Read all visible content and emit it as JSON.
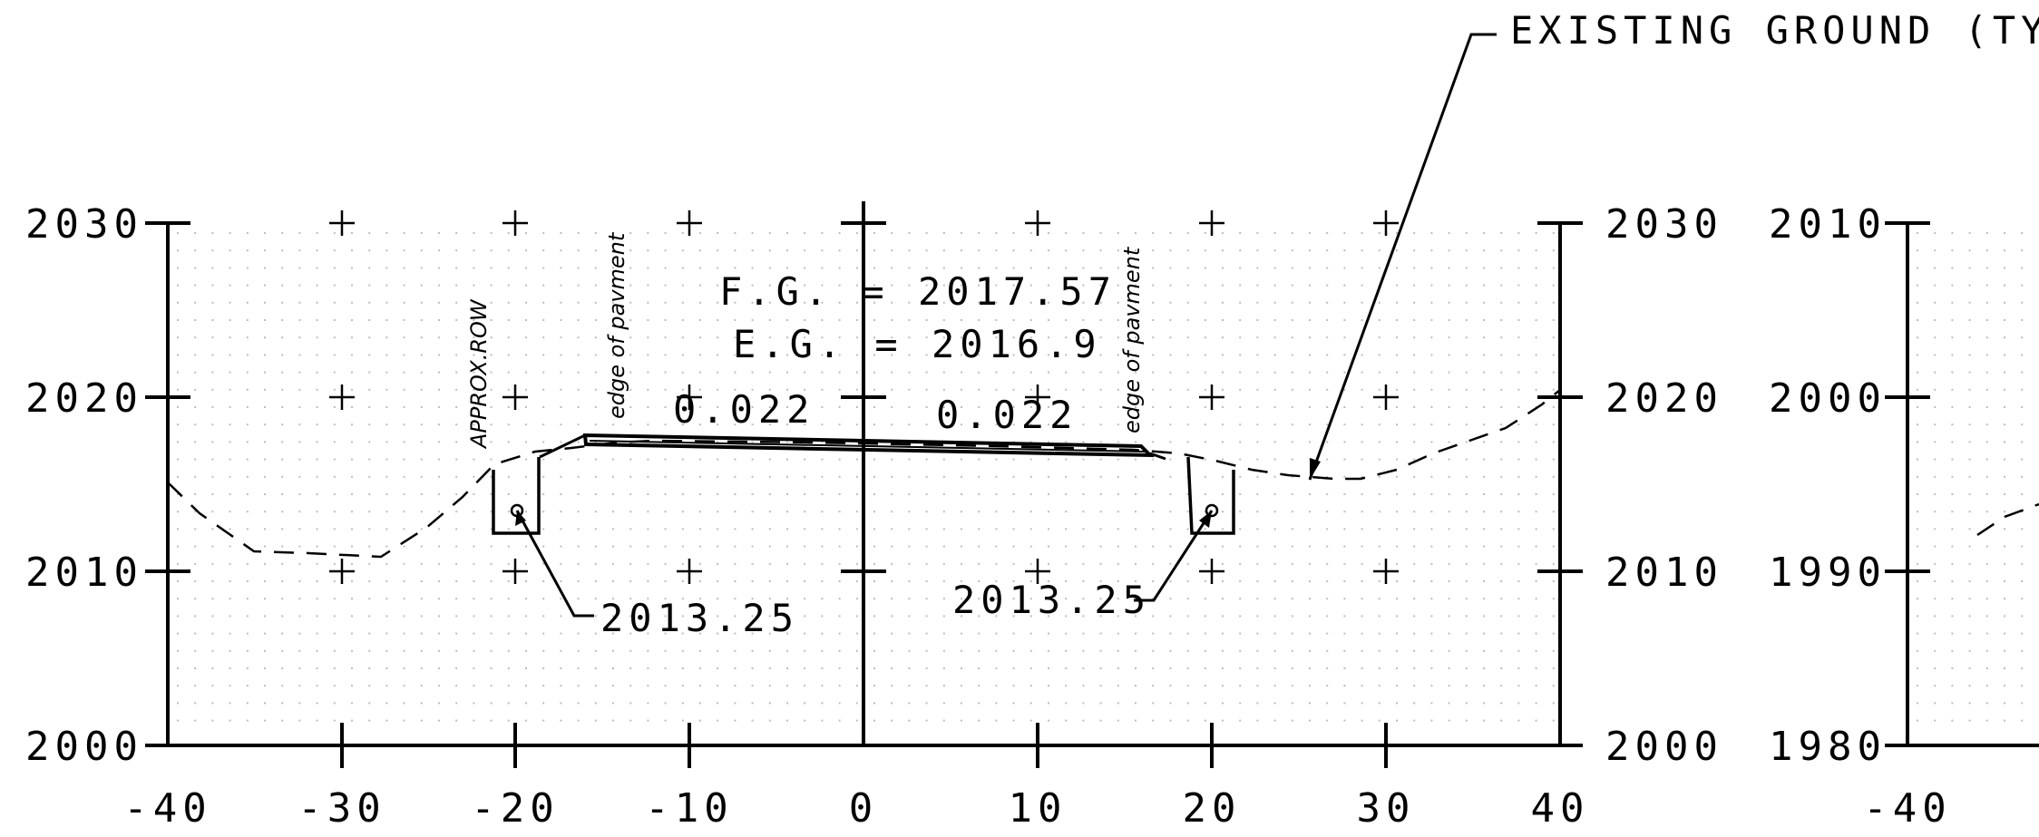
{
  "callout_existing_ground": "EXISTING GROUND (TYP.)",
  "panel_main": {
    "y_ticks": [
      "2030",
      "2020",
      "2010",
      "2000"
    ],
    "x_ticks": [
      "-40",
      "-30",
      "-20",
      "-10",
      "0",
      "10",
      "20",
      "30",
      "40"
    ]
  },
  "panel_right": {
    "y_ticks": [
      "2010",
      "2000",
      "1990",
      "1980"
    ],
    "x_ticks": [
      "-40"
    ]
  },
  "labels": {
    "fg": "F.G. = 2017.57",
    "eg": "E.G. = 2016.9",
    "slope_left": "0.022",
    "slope_right": "0.022",
    "approx_row": "APPROX.ROW",
    "edge_left": "edge of pavment",
    "edge_right": "edge of pavment",
    "ditch_left": "2013.25",
    "ditch_right": "2013.25"
  },
  "colors": {
    "ink": "#000000",
    "grid": "#bdbdbd"
  }
}
